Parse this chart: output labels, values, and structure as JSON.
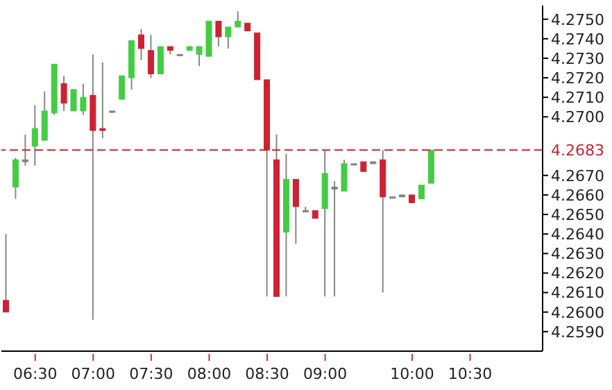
{
  "chart_data": {
    "type": "candlestick",
    "categories": [
      null,
      null,
      null,
      "06:30",
      null,
      null,
      null,
      null,
      null,
      "07:00",
      null,
      null,
      null,
      null,
      null,
      "07:30",
      null,
      null,
      null,
      null,
      null,
      "08:00",
      null,
      null,
      null,
      null,
      null,
      "08:30",
      null,
      null,
      null,
      null,
      null,
      "09:00",
      null,
      null,
      null,
      null,
      null,
      null,
      null,
      null,
      "10:00",
      null,
      null,
      null,
      null,
      null,
      "10:30",
      null,
      null,
      null,
      null,
      null,
      null,
      null
    ],
    "ohlc": [
      [
        4.2606,
        4.264,
        4.26,
        4.26
      ],
      [
        4.2664,
        4.2679,
        4.2658,
        4.2678
      ],
      [
        4.2678,
        4.2691,
        4.2675,
        4.2677
      ],
      [
        4.2685,
        4.2706,
        4.2675,
        4.2694
      ],
      [
        4.2688,
        4.2713,
        4.2688,
        4.2703
      ],
      [
        4.2702,
        4.2727,
        4.2701,
        4.2727
      ],
      [
        4.2717,
        4.2721,
        4.2703,
        4.2707
      ],
      [
        4.2703,
        4.2714,
        4.2703,
        4.2714
      ],
      [
        4.2703,
        4.2717,
        4.2701,
        4.271
      ],
      [
        4.2711,
        4.2732,
        4.2596,
        4.2693
      ],
      [
        4.2694,
        4.2728,
        4.2689,
        4.2693
      ],
      [
        4.2703,
        4.2703,
        4.2702,
        4.2703
      ],
      [
        4.2709,
        4.2721,
        4.2709,
        4.2721
      ],
      [
        4.272,
        4.2739,
        4.2714,
        4.2739
      ],
      [
        4.2742,
        4.2745,
        4.2729,
        4.2735
      ],
      [
        4.2734,
        4.2742,
        4.272,
        4.2722
      ],
      [
        4.2722,
        4.2736,
        4.2722,
        4.2736
      ],
      [
        4.2736,
        4.2736,
        4.2732,
        4.2734
      ],
      [
        4.2732,
        4.2732,
        4.2732,
        4.2732
      ],
      [
        4.2734,
        4.2736,
        4.2734,
        4.2736
      ],
      [
        4.2732,
        4.2736,
        4.2726,
        4.2736
      ],
      [
        4.2731,
        4.2749,
        4.2731,
        4.2749
      ],
      [
        4.2749,
        4.2749,
        4.2736,
        4.2741
      ],
      [
        4.2741,
        4.2746,
        4.2735,
        4.2746
      ],
      [
        4.2746,
        4.2754,
        4.2746,
        4.2749
      ],
      [
        4.2748,
        4.2748,
        4.2744,
        4.2744
      ],
      [
        4.2743,
        4.2743,
        4.2719,
        4.2719
      ],
      [
        4.2719,
        4.2719,
        4.2608,
        4.2683
      ],
      [
        4.2678,
        4.2691,
        4.2608,
        4.2608
      ],
      [
        4.2641,
        4.2681,
        4.2608,
        4.2668
      ],
      [
        4.2668,
        4.2668,
        4.2635,
        4.2654
      ],
      [
        4.2652,
        4.2654,
        4.2652,
        4.2652
      ],
      [
        4.2652,
        4.2652,
        4.2648,
        4.2648
      ],
      [
        4.2653,
        4.2683,
        4.2608,
        4.2671
      ],
      [
        4.2663,
        4.2667,
        4.2608,
        4.2664
      ],
      [
        4.2662,
        4.2678,
        4.2662,
        4.2676
      ],
      [
        4.2676,
        4.2676,
        4.2676,
        4.2676
      ],
      [
        4.2677,
        4.2677,
        4.2672,
        4.2672
      ],
      [
        4.2676,
        4.2677,
        4.2676,
        4.2677
      ],
      [
        4.2678,
        4.2683,
        4.261,
        4.2659
      ],
      [
        4.2659,
        4.2659,
        4.2659,
        4.2659
      ],
      [
        4.2659,
        4.266,
        4.2659,
        4.266
      ],
      [
        4.266,
        4.266,
        4.2656,
        4.2656
      ],
      [
        4.2658,
        4.2665,
        4.2658,
        4.2665
      ],
      [
        4.2666,
        4.2683,
        4.2666,
        4.2683
      ],
      null,
      null,
      null,
      null,
      null,
      null,
      null,
      null,
      null,
      null,
      null
    ],
    "colors": [
      "#cc2233",
      "#44cc44",
      "#808080",
      "#44cc44",
      "#44cc44",
      "#44cc44",
      "#cc2233",
      "#44cc44",
      "#44cc44",
      "#cc2233",
      "#cc2233",
      "#808080",
      "#44cc44",
      "#44cc44",
      "#cc2233",
      "#cc2233",
      "#44cc44",
      "#cc2233",
      "#808080",
      "#44cc44",
      "#44cc44",
      "#44cc44",
      "#cc2233",
      "#44cc44",
      "#44cc44",
      "#cc2233",
      "#cc2233",
      "#cc2233",
      "#cc2233",
      "#44cc44",
      "#cc2233",
      "#808080",
      "#cc2233",
      "#44cc44",
      "#808080",
      "#44cc44",
      "#808080",
      "#cc2233",
      "#808080",
      "#cc2233",
      "#808080",
      "#808080",
      "#cc2233",
      "#44cc44",
      "#44cc44",
      null,
      null,
      null,
      null,
      null,
      null,
      null,
      null,
      null,
      null,
      null
    ],
    "ylim": [
      4.258,
      4.2757
    ],
    "yticks": [
      {
        "value": 4.259,
        "label": "4.2590"
      },
      {
        "value": 4.26,
        "label": "4.2600"
      },
      {
        "value": 4.261,
        "label": "4.2610"
      },
      {
        "value": 4.262,
        "label": "4.2620"
      },
      {
        "value": 4.263,
        "label": "4.2630"
      },
      {
        "value": 4.264,
        "label": "4.2640"
      },
      {
        "value": 4.265,
        "label": "4.2650"
      },
      {
        "value": 4.266,
        "label": "4.2660"
      },
      {
        "value": 4.267,
        "label": "4.2670"
      },
      {
        "value": 4.27,
        "label": "4.2700"
      },
      {
        "value": 4.271,
        "label": "4.2710"
      },
      {
        "value": 4.272,
        "label": "4.2720"
      },
      {
        "value": 4.273,
        "label": "4.2730"
      },
      {
        "value": 4.274,
        "label": "4.2740"
      },
      {
        "value": 4.275,
        "label": "4.2750"
      }
    ],
    "ref_lines": [
      {
        "axis": "y",
        "value": 4.2683,
        "label": "4.2683",
        "color": "#cc2233",
        "line_style": "dashed"
      }
    ]
  }
}
